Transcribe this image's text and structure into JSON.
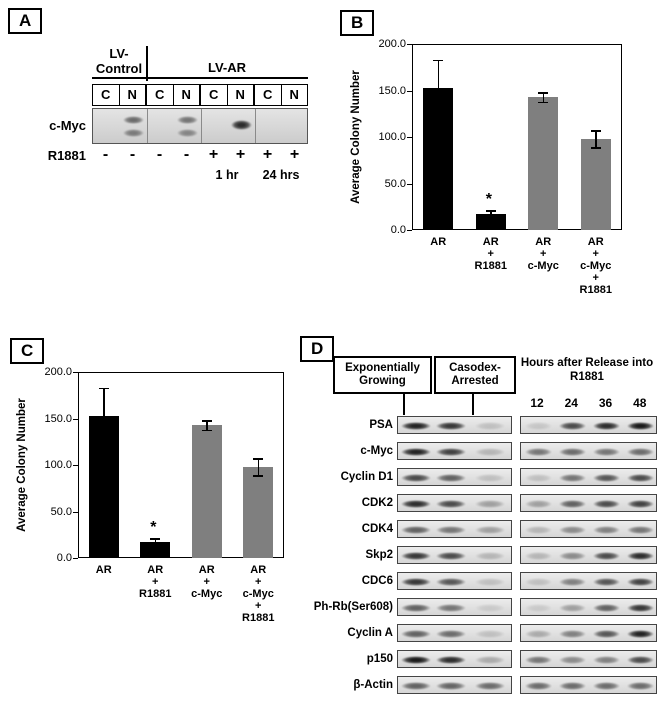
{
  "panel_a": {
    "label": "A",
    "header_control_top": "LV-",
    "header_control_bottom": "Control",
    "header_ar": "LV-AR",
    "lane_labels": [
      "C",
      "N",
      "C",
      "N",
      "C",
      "N",
      "C",
      "N"
    ],
    "blot_row_label": "c-Myc",
    "r1881_label": "R1881",
    "r1881_signs": [
      "-",
      "-",
      "-",
      "-",
      "+",
      "+",
      "+",
      "+"
    ],
    "time_labels": [
      "1 hr",
      "24 hrs"
    ],
    "lane_bands": [
      [],
      [
        0.55,
        0.45
      ],
      [],
      [
        0.5,
        0.4
      ],
      [],
      [
        0.85
      ],
      [],
      []
    ]
  },
  "chart_data": [
    {
      "panel_label": "B",
      "type": "bar",
      "ylabel": "Average Colony Number",
      "ylim": [
        0,
        200
      ],
      "yticks": [
        0,
        50,
        100,
        150,
        200
      ],
      "ytick_labels": [
        "0.0",
        "50.0",
        "100.0",
        "150.0",
        "200.0"
      ],
      "categories": [
        "AR",
        "AR + R1881",
        "AR + c-Myc",
        "AR + c-Myc + R1881"
      ],
      "category_lines": [
        [
          "AR"
        ],
        [
          "AR",
          "+",
          "R1881"
        ],
        [
          "AR",
          "+",
          "c-Myc"
        ],
        [
          "AR",
          "+",
          "c-Myc",
          "+",
          "R1881"
        ]
      ],
      "values": [
        153,
        17,
        143,
        98
      ],
      "errors": [
        30,
        4,
        5,
        9
      ],
      "bar_colors": [
        "#000000",
        "#000000",
        "#7f7f7f",
        "#7f7f7f"
      ],
      "annotations": [
        {
          "bar_index": 1,
          "text": "*"
        }
      ],
      "grid": false,
      "legend": "none"
    },
    {
      "panel_label": "C",
      "type": "bar",
      "ylabel": "Average Colony Number",
      "ylim": [
        0,
        200
      ],
      "yticks": [
        0,
        50,
        100,
        150,
        200
      ],
      "ytick_labels": [
        "0.0",
        "50.0",
        "100.0",
        "150.0",
        "200.0"
      ],
      "categories": [
        "AR",
        "AR + R1881",
        "AR + c-Myc",
        "AR + c-Myc + R1881"
      ],
      "category_lines": [
        [
          "AR"
        ],
        [
          "AR",
          "+",
          "R1881"
        ],
        [
          "AR",
          "+",
          "c-Myc"
        ],
        [
          "AR",
          "+",
          "c-Myc",
          "+",
          "R1881"
        ]
      ],
      "values": [
        153,
        17,
        143,
        98
      ],
      "errors": [
        30,
        4,
        5,
        9
      ],
      "bar_colors": [
        "#000000",
        "#000000",
        "#7f7f7f",
        "#7f7f7f"
      ],
      "annotations": [
        {
          "bar_index": 1,
          "text": "*"
        }
      ],
      "grid": false,
      "legend": "none"
    }
  ],
  "panel_d": {
    "label": "D",
    "left_headers": [
      "Exponentially Growing",
      "Casodex-Arrested"
    ],
    "right_header": "Hours after Release into R1881",
    "time_points": [
      "12",
      "24",
      "36",
      "48"
    ],
    "rows": [
      {
        "label": "PSA",
        "left": [
          0.9,
          0.8,
          0.15
        ],
        "right": [
          0.12,
          0.7,
          0.85,
          0.95
        ]
      },
      {
        "label": "c-Myc",
        "left": [
          0.9,
          0.75,
          0.2
        ],
        "right": [
          0.5,
          0.55,
          0.5,
          0.55
        ]
      },
      {
        "label": "Cyclin D1",
        "left": [
          0.7,
          0.6,
          0.15
        ],
        "right": [
          0.15,
          0.5,
          0.65,
          0.7
        ]
      },
      {
        "label": "CDK2",
        "left": [
          0.85,
          0.7,
          0.3
        ],
        "right": [
          0.3,
          0.6,
          0.7,
          0.75
        ]
      },
      {
        "label": "CDK4",
        "left": [
          0.6,
          0.5,
          0.3
        ],
        "right": [
          0.2,
          0.4,
          0.45,
          0.5
        ]
      },
      {
        "label": "Skp2",
        "left": [
          0.8,
          0.7,
          0.2
        ],
        "right": [
          0.2,
          0.4,
          0.7,
          0.85
        ]
      },
      {
        "label": "CDC6",
        "left": [
          0.8,
          0.65,
          0.15
        ],
        "right": [
          0.15,
          0.45,
          0.65,
          0.75
        ]
      },
      {
        "label": "Ph-Rb(Ser608)",
        "left": [
          0.6,
          0.5,
          0.1
        ],
        "right": [
          0.1,
          0.3,
          0.6,
          0.8
        ]
      },
      {
        "label": "Cyclin A",
        "left": [
          0.6,
          0.55,
          0.15
        ],
        "right": [
          0.25,
          0.45,
          0.65,
          0.9
        ]
      },
      {
        "label": "p150",
        "left": [
          0.95,
          0.85,
          0.25
        ],
        "right": [
          0.5,
          0.4,
          0.45,
          0.7
        ]
      },
      {
        "label": "β-Actin",
        "left": [
          0.6,
          0.58,
          0.55
        ],
        "right": [
          0.55,
          0.55,
          0.55,
          0.55
        ]
      }
    ]
  }
}
